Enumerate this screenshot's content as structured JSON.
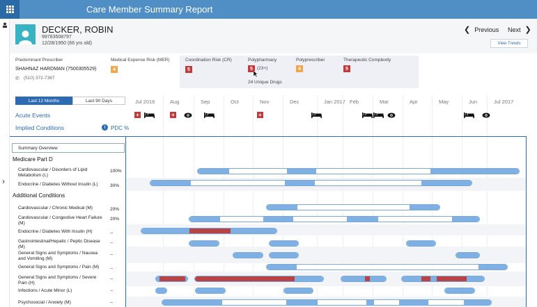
{
  "app": {
    "title": "Care Member Summary Report"
  },
  "patient": {
    "name": "DECKER, ROBIN",
    "id": "99783508797",
    "dob": "12/28/1950 (66 yrs old)"
  },
  "nav": {
    "previous": "Previous",
    "next": "Next",
    "view_trends": "View Trends"
  },
  "metrics": {
    "prescriber_label": "Predominant Prescriber",
    "prescriber_value": "SHAHNAZ HARDMAN (7500305529)",
    "prescriber_phone": "(510) 372-7367",
    "mer_label": "Medical Expense Risk (MER)",
    "mer_value": "4",
    "cr_label": "Coordination Risk (CR)",
    "cr_value": "5",
    "poly_label": "Polypharmacy",
    "poly_value": "5",
    "poly_extra": "(23+)",
    "poly_drugs": "24 Unique Drugs",
    "polypres_label": "Polyprescriber",
    "polypres_value": "4",
    "thera_label": "Therapeutic Complexity",
    "thera_value": "5"
  },
  "timeline": {
    "tab_active": "Last 12 Months",
    "tab_inactive": "Last 90 Days",
    "months": [
      "Jul 2016",
      "Aug",
      "Sep",
      "Oct",
      "Nov",
      "Dec",
      "Jan 2017",
      "Feb",
      "Mar",
      "Apr",
      "May",
      "Jun",
      "Jul 2017"
    ],
    "acute_events_label": "Acute Events",
    "implied_conditions_label": "Implied Conditions",
    "pdc_label": "PDC %"
  },
  "summary": {
    "overview_label": "Summary Overview",
    "medicare_title": "Medicare Part D",
    "additional_title": "Additional Conditions",
    "rows": [
      {
        "label": "Cardiovascular / Disorders of Lipid Metabolism (L)",
        "pct": "100%"
      },
      {
        "label": "Endocrine / Diabetes Without Insulin (L)",
        "pct": "30%"
      },
      {
        "label": "Cardiovascular / Chronic Medical (M)",
        "pct": "20%"
      },
      {
        "label": "Cardiovascular / Congestive Heart Failure (M)",
        "pct": "20%"
      },
      {
        "label": "Endocrine / Diabetes With Insulin (H)",
        "pct": "--"
      },
      {
        "label": "Gastrointestinal/Hepatic / Peptic Disease (M)",
        "pct": "--"
      },
      {
        "label": "General Signs and Symptoms / Nausea and Vomiting (M)",
        "pct": "--"
      },
      {
        "label": "General Signs and Symptoms / Pain (M)",
        "pct": "--"
      },
      {
        "label": "General Signs and Symptoms / Severe Pain (H)",
        "pct": "--"
      },
      {
        "label": "Infections / Acute Minor (L)",
        "pct": "--"
      },
      {
        "label": "Psychosocial / Anxiety (M)",
        "pct": "--"
      }
    ]
  },
  "colors": {
    "header_blue": "#4f8fc6",
    "accent_blue": "#2c6ab4",
    "risk_red": "#c0393b",
    "risk_orange": "#f4a547",
    "bar_blue": "#7fb0e3",
    "bar_red": "#b94244"
  }
}
